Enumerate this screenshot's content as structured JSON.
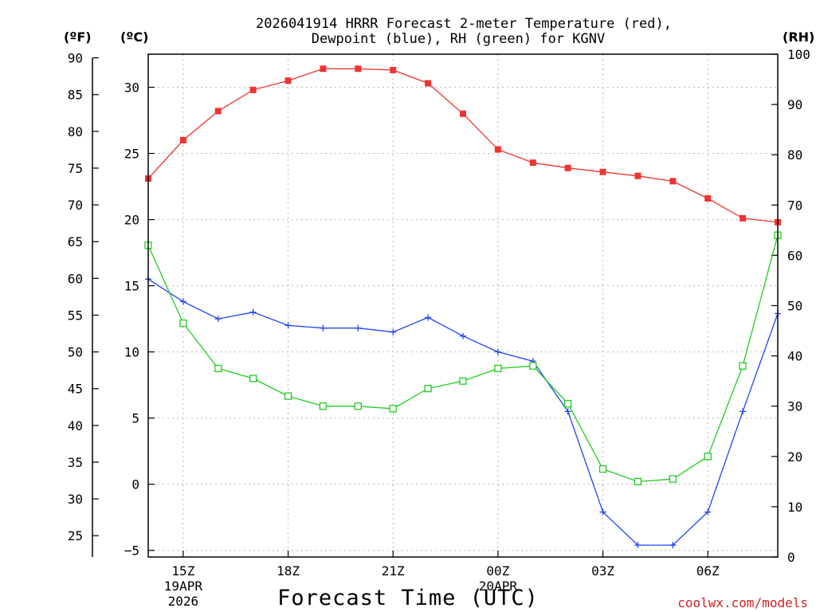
{
  "chart_data": {
    "type": "line",
    "title": "2026041914 HRRR Forecast 2-meter Temperature (red),",
    "title_line2": "Dewpoint (blue), RH (green) for KGNV",
    "xlabel": "Forecast Time (UTC)",
    "credit": "coolwx.com/models",
    "units": {
      "fahrenheit": "(ºF)",
      "celsius": "(ºC)",
      "rh": "(RH)"
    },
    "x_hours": [
      14,
      15,
      16,
      17,
      18,
      19,
      20,
      21,
      22,
      23,
      24,
      25,
      26,
      27,
      28,
      29,
      30,
      31,
      32
    ],
    "x_range_hours": [
      14,
      32
    ],
    "x_ticks": [
      {
        "hour": 15,
        "label": "15Z",
        "label2": "19APR",
        "label3": "2026"
      },
      {
        "hour": 18,
        "label": "18Z"
      },
      {
        "hour": 21,
        "label": "21Z"
      },
      {
        "hour": 24,
        "label": "00Z",
        "label2": "20APR"
      },
      {
        "hour": 27,
        "label": "03Z"
      },
      {
        "hour": 30,
        "label": "06Z"
      }
    ],
    "celsius_axis": {
      "min": -5.5,
      "max": 32.5,
      "ticks": [
        -5,
        0,
        5,
        10,
        15,
        20,
        25,
        30
      ],
      "tick_labels": [
        "−5",
        "0",
        "5",
        "10",
        "15",
        "20",
        "25",
        "30"
      ]
    },
    "fahrenheit_axis": {
      "ticks": [
        25,
        30,
        35,
        40,
        45,
        50,
        55,
        60,
        65,
        70,
        75,
        80,
        85,
        90
      ]
    },
    "rh_axis": {
      "min": 0,
      "max": 100,
      "ticks": [
        0,
        10,
        20,
        30,
        40,
        50,
        60,
        70,
        80,
        90,
        100
      ]
    },
    "series": [
      {
        "name": "Temperature",
        "axis": "celsius",
        "color": "#ee3333",
        "marker": "filled-square",
        "values": [
          23.1,
          26.0,
          28.2,
          29.8,
          30.5,
          31.4,
          31.4,
          31.3,
          30.3,
          28.0,
          25.3,
          24.3,
          23.9,
          23.6,
          23.3,
          22.9,
          21.6,
          20.1,
          19.8
        ]
      },
      {
        "name": "Dewpoint",
        "axis": "celsius",
        "color": "#2244ee",
        "marker": "plus",
        "values": [
          15.5,
          13.8,
          12.5,
          13.0,
          12.0,
          11.8,
          11.8,
          11.5,
          12.6,
          11.2,
          10.0,
          9.3,
          5.5,
          -2.1,
          -4.6,
          -4.6,
          -2.1,
          5.5,
          12.9
        ]
      },
      {
        "name": "RH",
        "axis": "rh",
        "color": "#22cc22",
        "marker": "open-square",
        "values": [
          62.0,
          46.5,
          37.5,
          35.5,
          32.0,
          30.0,
          30.0,
          29.5,
          33.5,
          35.0,
          37.5,
          38.0,
          30.5,
          17.5,
          15.0,
          15.5,
          20.0,
          38.0,
          64.0
        ]
      }
    ]
  }
}
